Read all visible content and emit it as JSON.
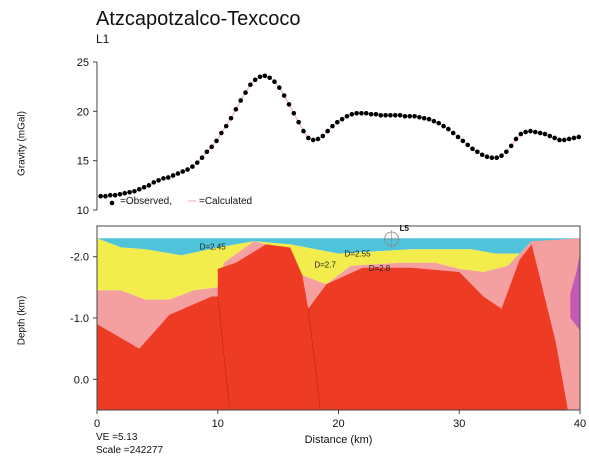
{
  "header": {
    "title": "Atzcapotzalco-Texcoco",
    "subtitle": "L1"
  },
  "footer": {
    "ve": "VE =5.13",
    "scale": "Scale =242277"
  },
  "chart_data": [
    {
      "type": "scatter",
      "ylabel": "Gravity (mGal)",
      "ylim": [
        10,
        25
      ],
      "xlim": [
        0,
        40
      ],
      "yticks": [
        10,
        15,
        20,
        25
      ],
      "legend": {
        "observed": "=Observed,",
        "calculated": "=Calculated",
        "placement": "bottom-left"
      },
      "colors": {
        "observed": "#000000",
        "calculated": "#f2a9a9"
      },
      "series": [
        {
          "name": "Observed",
          "x": [
            0.3,
            0.7,
            1.1,
            1.5,
            1.9,
            2.3,
            2.7,
            3.1,
            3.5,
            3.9,
            4.3,
            4.7,
            5.1,
            5.5,
            5.9,
            6.3,
            6.7,
            7.1,
            7.5,
            7.9,
            8.3,
            8.7,
            9.1,
            9.5,
            9.9,
            10.3,
            10.7,
            11.1,
            11.5,
            11.9,
            12.3,
            12.7,
            13.1,
            13.5,
            13.9,
            14.3,
            14.7,
            15.1,
            15.5,
            15.9,
            16.3,
            16.7,
            17.1,
            17.5,
            17.9,
            18.3,
            18.7,
            19.1,
            19.5,
            19.9,
            20.3,
            20.7,
            21.1,
            21.5,
            21.9,
            22.3,
            22.7,
            23.1,
            23.5,
            23.9,
            24.3,
            24.7,
            25.1,
            25.5,
            25.9,
            26.3,
            26.7,
            27.1,
            27.5,
            27.9,
            28.3,
            28.7,
            29.1,
            29.5,
            29.9,
            30.3,
            30.7,
            31.1,
            31.5,
            31.9,
            32.3,
            32.7,
            33.1,
            33.5,
            33.9,
            34.3,
            34.7,
            35.1,
            35.5,
            35.9,
            36.3,
            36.7,
            37.1,
            37.5,
            37.9,
            38.3,
            38.7,
            39.1,
            39.5,
            39.9
          ],
          "y": [
            11.4,
            11.4,
            11.5,
            11.5,
            11.6,
            11.7,
            11.8,
            11.9,
            12.1,
            12.3,
            12.5,
            12.8,
            13.0,
            13.2,
            13.3,
            13.5,
            13.7,
            13.9,
            14.1,
            14.4,
            14.8,
            15.3,
            15.9,
            16.4,
            17.0,
            17.8,
            18.5,
            19.3,
            20.2,
            21.1,
            21.9,
            22.7,
            23.2,
            23.5,
            23.6,
            23.4,
            23.0,
            22.4,
            21.6,
            20.7,
            19.8,
            18.9,
            18.0,
            17.3,
            17.1,
            17.2,
            17.5,
            18.0,
            18.5,
            18.9,
            19.2,
            19.5,
            19.7,
            19.8,
            19.8,
            19.8,
            19.7,
            19.7,
            19.6,
            19.6,
            19.6,
            19.6,
            19.6,
            19.5,
            19.5,
            19.5,
            19.4,
            19.3,
            19.2,
            19.0,
            18.8,
            18.5,
            18.2,
            17.8,
            17.4,
            17.0,
            16.6,
            16.2,
            15.9,
            15.6,
            15.4,
            15.3,
            15.3,
            15.5,
            15.9,
            16.5,
            17.2,
            17.7,
            17.9,
            18.0,
            17.9,
            17.8,
            17.7,
            17.5,
            17.3,
            17.1,
            17.1,
            17.2,
            17.3,
            17.4
          ]
        }
      ]
    },
    {
      "type": "area",
      "title": "",
      "ylabel": "Depth (km)",
      "xlabel": "Distance (km)",
      "xlim": [
        0,
        40
      ],
      "ylim": [
        0.5,
        -2.5
      ],
      "xticks": [
        0,
        10,
        20,
        30,
        40
      ],
      "yticks": [
        -2.0,
        -1.0,
        0.0
      ],
      "ytick_labels": [
        "-2.0",
        "-1.0",
        "0.0"
      ],
      "station_label": "L5",
      "station_x": 24.4,
      "density_labels": [
        {
          "text": "D=2.45",
          "x": 8.5,
          "y": -2.12
        },
        {
          "text": "D=2.55",
          "x": 20.5,
          "y": -2.0
        },
        {
          "text": "D=2.7",
          "x": 18.0,
          "y": -1.82
        },
        {
          "text": "D=2.8",
          "x": 22.5,
          "y": -1.77
        }
      ],
      "layers": [
        {
          "name": "water",
          "color": "#4fc3d9",
          "points": [
            [
              0,
              -2.3
            ],
            [
              40,
              -2.3
            ],
            [
              40,
              -2.05
            ],
            [
              33,
              -2.05
            ],
            [
              31,
              -2.12
            ],
            [
              26,
              -2.12
            ],
            [
              20,
              -2.05
            ],
            [
              16,
              -2.2
            ],
            [
              13,
              -2.25
            ],
            [
              10,
              -2.15
            ],
            [
              7,
              -2.02
            ],
            [
              4,
              -2.12
            ],
            [
              2,
              -2.15
            ],
            [
              0,
              -2.3
            ]
          ]
        },
        {
          "name": "sediment-2.55",
          "color": "#f2ec4c",
          "points": [
            [
              0,
              -2.3
            ],
            [
              2,
              -2.15
            ],
            [
              4,
              -2.12
            ],
            [
              7,
              -2.02
            ],
            [
              10,
              -2.15
            ],
            [
              13,
              -2.25
            ],
            [
              16,
              -2.2
            ],
            [
              20,
              -2.05
            ],
            [
              26,
              -2.12
            ],
            [
              31,
              -2.12
            ],
            [
              33,
              -2.05
            ],
            [
              40,
              -2.05
            ],
            [
              40,
              -2.25
            ],
            [
              36,
              -2.25
            ],
            [
              34,
              -1.85
            ],
            [
              32,
              -1.75
            ],
            [
              30,
              -1.8
            ],
            [
              28,
              -1.9
            ],
            [
              25,
              -1.9
            ],
            [
              21,
              -1.85
            ],
            [
              19,
              -1.55
            ],
            [
              17,
              -1.7
            ],
            [
              15,
              -2.15
            ],
            [
              13,
              -2.25
            ],
            [
              10.5,
              -1.9
            ],
            [
              10,
              -1.5
            ],
            [
              8,
              -1.45
            ],
            [
              6,
              -1.3
            ],
            [
              4,
              -1.3
            ],
            [
              2,
              -1.45
            ],
            [
              0,
              -1.45
            ]
          ]
        },
        {
          "name": "pink-2.7",
          "color": "#f4a0a0",
          "points": [
            [
              0,
              -1.45
            ],
            [
              2,
              -1.45
            ],
            [
              4,
              -1.3
            ],
            [
              6,
              -1.3
            ],
            [
              8,
              -1.45
            ],
            [
              10,
              -1.5
            ],
            [
              10.5,
              -1.9
            ],
            [
              13,
              -2.25
            ],
            [
              15,
              -2.15
            ],
            [
              17,
              -1.7
            ],
            [
              19,
              -1.55
            ],
            [
              21,
              -1.85
            ],
            [
              25,
              -1.9
            ],
            [
              28,
              -1.9
            ],
            [
              30,
              -1.8
            ],
            [
              32,
              -1.75
            ],
            [
              34,
              -1.85
            ],
            [
              36,
              -2.25
            ],
            [
              40,
              -2.3
            ],
            [
              40,
              0.5
            ],
            [
              0,
              0.5
            ]
          ]
        },
        {
          "name": "basement-2.8",
          "color": "#ee3b24",
          "points": [
            [
              0,
              -0.9
            ],
            [
              3.5,
              -0.5
            ],
            [
              6,
              -1.05
            ],
            [
              9.5,
              -1.35
            ],
            [
              10,
              -1.35
            ],
            [
              10,
              -1.8
            ],
            [
              11.5,
              -1.9
            ],
            [
              14,
              -2.2
            ],
            [
              16,
              -2.15
            ],
            [
              17,
              -1.7
            ],
            [
              17.5,
              -1.15
            ],
            [
              19,
              -1.55
            ],
            [
              22,
              -1.82
            ],
            [
              26,
              -1.82
            ],
            [
              30,
              -1.75
            ],
            [
              32,
              -1.35
            ],
            [
              33.5,
              -1.15
            ],
            [
              35,
              -1.95
            ],
            [
              36,
              -2.2
            ],
            [
              38,
              -0.6
            ],
            [
              39,
              0.5
            ],
            [
              0,
              0.5
            ]
          ]
        },
        {
          "name": "magenta-body",
          "color": "#c45bb3",
          "points": [
            [
              40,
              -2.05
            ],
            [
              39.7,
              -1.75
            ],
            [
              39.2,
              -1.4
            ],
            [
              39.2,
              -1.0
            ],
            [
              40,
              -0.8
            ]
          ]
        }
      ]
    }
  ]
}
